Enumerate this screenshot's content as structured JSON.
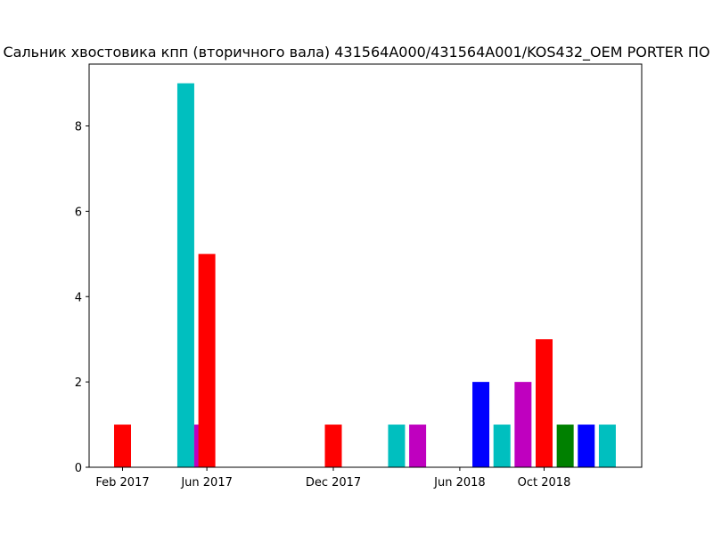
{
  "chart_data": {
    "type": "bar",
    "title": "Сальник хвостовика кпп (вторичного вала) 431564A000/431564A001/KOS432_OEM PORTER ПО",
    "xlabel": "",
    "ylabel": "",
    "ylim": [
      0,
      9.45
    ],
    "yticks": [
      0,
      2,
      4,
      6,
      8
    ],
    "xticks": [
      {
        "label": "Feb 2017",
        "month": 0
      },
      {
        "label": "Jun 2017",
        "month": 4
      },
      {
        "label": "Dec 2017",
        "month": 10
      },
      {
        "label": "Jun 2018",
        "month": 16
      },
      {
        "label": "Oct 2018",
        "month": 20
      }
    ],
    "bars": [
      {
        "month": 0,
        "value": 1,
        "color": "#ff0000"
      },
      {
        "month": 3,
        "value": 9,
        "color": "#00bfbf"
      },
      {
        "month": 3.8,
        "value": 1,
        "color": "#bf00bf"
      },
      {
        "month": 4,
        "value": 5,
        "color": "#ff0000"
      },
      {
        "month": 10,
        "value": 1,
        "color": "#ff0000"
      },
      {
        "month": 13,
        "value": 1,
        "color": "#00bfbf"
      },
      {
        "month": 14,
        "value": 1,
        "color": "#bf00bf"
      },
      {
        "month": 17,
        "value": 2,
        "color": "#0000ff"
      },
      {
        "month": 18,
        "value": 1,
        "color": "#00bfbf"
      },
      {
        "month": 19,
        "value": 2,
        "color": "#bf00bf"
      },
      {
        "month": 20,
        "value": 3,
        "color": "#ff0000"
      },
      {
        "month": 21,
        "value": 1,
        "color": "#008000"
      },
      {
        "month": 22,
        "value": 1,
        "color": "#0000ff"
      },
      {
        "month": 23,
        "value": 1,
        "color": "#00bfbf"
      }
    ],
    "grid": false,
    "legend": "none"
  }
}
